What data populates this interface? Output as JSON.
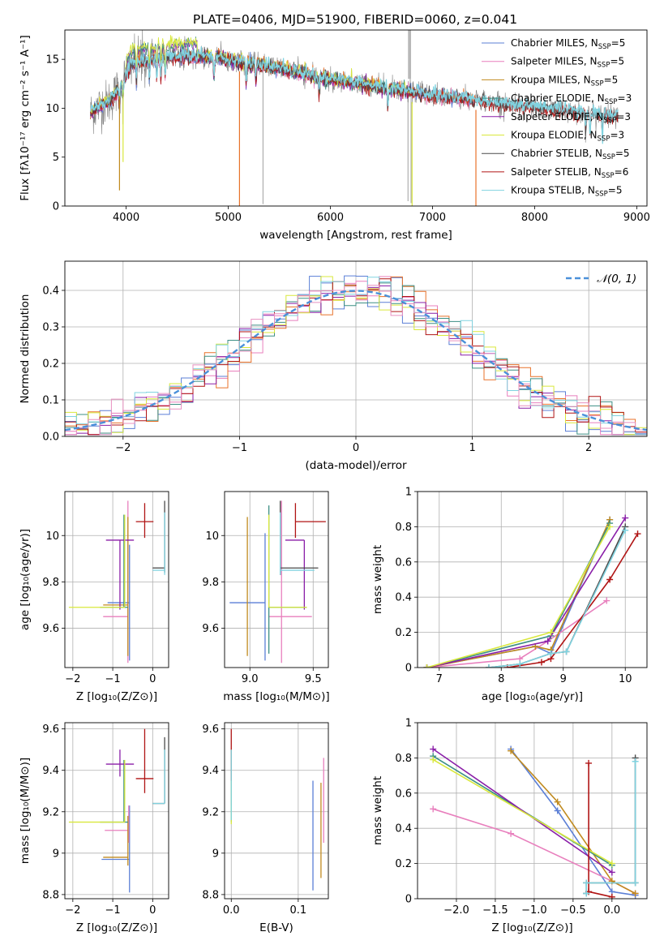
{
  "figure": {
    "title": "PLATE=0406, MJD=51900, FIBERID=0060, z=0.041"
  },
  "colors": {
    "Chabrier MILES": "#5b7fd6",
    "Salpeter MILES": "#e87fbd",
    "Kroupa MILES": "#c08a1e",
    "Chabrier ELODIE": "#3d8f84",
    "Salpeter ELODIE": "#8a1fa8",
    "Kroupa ELODIE": "#d9e83c",
    "Chabrier STELIB": "#4a4a4a",
    "Salpeter STELIB": "#b01414",
    "Kroupa STELIB": "#80d3e0",
    "data": "#808080",
    "gaussian": "#4a90d9",
    "orange": "#e8722a",
    "grid": "#b0b0b0"
  },
  "chart_data": [
    {
      "type": "line",
      "id": "spectrum",
      "xlabel": "wavelength [Angstrom, rest frame]",
      "ylabel": "Flux [fλ10⁻¹⁷ erg cm⁻² s⁻¹ A⁻¹]",
      "xlim": [
        3400,
        9100
      ],
      "ylim": [
        0,
        18
      ],
      "xticks": [
        4000,
        5000,
        6000,
        7000,
        8000,
        9000
      ],
      "yticks": [
        0,
        5,
        10,
        15
      ],
      "grid": false,
      "legend_position": "top-right",
      "legend": [
        {
          "base": "Chabrier MILES, N",
          "sub": "SSP",
          "tail": "=5"
        },
        {
          "base": "Salpeter MILES, N",
          "sub": "SSP",
          "tail": "=5"
        },
        {
          "base": "Kroupa MILES, N",
          "sub": "SSP",
          "tail": "=5"
        },
        {
          "base": "Chabrier ELODIE, N",
          "sub": "SSP",
          "tail": "=3"
        },
        {
          "base": "Salpeter ELODIE, N",
          "sub": "SSP",
          "tail": "=3"
        },
        {
          "base": "Kroupa ELODIE, N",
          "sub": "SSP",
          "tail": "=3"
        },
        {
          "base": "Chabrier STELIB, N",
          "sub": "SSP",
          "tail": "=5"
        },
        {
          "base": "Salpeter STELIB, N",
          "sub": "SSP",
          "tail": "=6"
        },
        {
          "base": "Kroupa STELIB, N",
          "sub": "SSP",
          "tail": "=5"
        }
      ],
      "continuum": {
        "x": [
          3650,
          3750,
          3850,
          3950,
          4050,
          4150,
          4250,
          4400,
          4600,
          4800,
          5000,
          5200,
          5500,
          5800,
          6100,
          6400,
          6700,
          7000,
          7300,
          7600,
          7900,
          8200,
          8500,
          8800
        ],
        "y": [
          9.5,
          10.3,
          10.8,
          12.5,
          14.5,
          14.8,
          15.0,
          15.2,
          15.3,
          15.3,
          15.0,
          14.6,
          14.1,
          13.4,
          12.8,
          12.3,
          11.8,
          11.3,
          11.0,
          10.6,
          10.2,
          9.9,
          9.5,
          9.2
        ]
      },
      "dips": [
        {
          "x": 3935,
          "y": 1.6
        },
        {
          "x": 3970,
          "y": 4.5
        },
        {
          "x": 5110,
          "y": 0.0
        },
        {
          "x": 6800,
          "y": 0.0
        },
        {
          "x": 7425,
          "y": 0.0
        }
      ]
    },
    {
      "type": "histogram",
      "id": "residuals",
      "xlabel": "(data-model)/error",
      "ylabel": "Normed distribution",
      "xlim": [
        -2.5,
        2.5
      ],
      "ylim": [
        0,
        0.48
      ],
      "xticks": [
        -2,
        -1,
        0,
        1,
        2
      ],
      "xtick_labels": [
        "−2",
        "−1",
        "0",
        "1",
        "2"
      ],
      "yticks": [
        0.0,
        0.1,
        0.2,
        0.3,
        0.4
      ],
      "ytick_labels": [
        "0.0",
        "0.1",
        "0.2",
        "0.3",
        "0.4"
      ],
      "grid": true,
      "legend_position": "top-right",
      "legend": [
        {
          "label": "𝒩(0, 1)"
        }
      ],
      "bin_width": 0.1
    },
    {
      "type": "scatter",
      "id": "age-vs-Z",
      "xlabel": "Z [log₁₀(Z/Z⊙)]",
      "ylabel": "age  [log₁₀(age/yr)]",
      "xlim": [
        -2.2,
        0.4
      ],
      "ylim": [
        9.43,
        10.19
      ],
      "xticks": [
        -2,
        -1,
        0
      ],
      "xtick_labels": [
        "−2",
        "−1",
        "0"
      ],
      "yticks": [
        9.6,
        9.8,
        10.0
      ],
      "grid": true,
      "points": [
        {
          "model": "Chabrier MILES",
          "x": -0.58,
          "y": 9.71,
          "xerr": [
            0.55,
            0.0
          ],
          "yerr": [
            0.25,
            0.25
          ]
        },
        {
          "model": "Salpeter MILES",
          "x": -0.62,
          "y": 9.65,
          "xerr": [
            0.62,
            0.0
          ],
          "yerr": [
            0.2,
            0.5
          ]
        },
        {
          "model": "Kroupa MILES",
          "x": -0.62,
          "y": 9.7,
          "xerr": [
            0.62,
            0.0
          ],
          "yerr": [
            0.22,
            0.38
          ]
        },
        {
          "model": "Chabrier ELODIE",
          "x": -0.72,
          "y": 9.69,
          "xerr": [
            0.6,
            0.1
          ],
          "yerr": [
            0.0,
            0.4
          ]
        },
        {
          "model": "Salpeter ELODIE",
          "x": -0.82,
          "y": 9.98,
          "xerr": [
            0.35,
            0.35
          ],
          "yerr": [
            0.3,
            0.0
          ]
        },
        {
          "model": "Kroupa ELODIE",
          "x": -0.7,
          "y": 9.69,
          "xerr": [
            1.4,
            0.0
          ],
          "yerr": [
            0.0,
            0.4
          ]
        },
        {
          "model": "Chabrier STELIB",
          "x": 0.3,
          "y": 9.86,
          "xerr": [
            0.3,
            0.0
          ],
          "yerr": [
            0.02,
            0.29
          ]
        },
        {
          "model": "Salpeter STELIB",
          "x": -0.2,
          "y": 10.06,
          "xerr": [
            0.22,
            0.22
          ],
          "yerr": [
            0.07,
            0.08
          ]
        },
        {
          "model": "Kroupa STELIB",
          "x": 0.3,
          "y": 9.85,
          "xerr": [
            0.3,
            0.0
          ],
          "yerr": [
            0.02,
            0.25
          ]
        }
      ]
    },
    {
      "type": "scatter",
      "id": "age-vs-mass",
      "xlabel": "mass [log₁₀(M/M⊙)]",
      "ylabel": "",
      "xlim": [
        8.8,
        9.62
      ],
      "ylim": [
        9.43,
        10.19
      ],
      "xticks": [
        9.0,
        9.5
      ],
      "xtick_labels": [
        "9.0",
        "9.5"
      ],
      "yticks": [
        9.6,
        9.8,
        10.0
      ],
      "grid": true,
      "points": [
        {
          "model": "Chabrier MILES",
          "x": 9.12,
          "y": 9.71,
          "xerr": [
            0.28,
            0.0
          ],
          "yerr": [
            0.25,
            0.3
          ]
        },
        {
          "model": "Salpeter MILES",
          "x": 9.25,
          "y": 9.65,
          "xerr": [
            0.1,
            0.24
          ],
          "yerr": [
            0.2,
            0.5
          ]
        },
        {
          "model": "Kroupa MILES",
          "x": 8.98,
          "y": 9.7,
          "xerr": [
            0.0,
            0.0
          ],
          "yerr": [
            0.22,
            0.38
          ]
        },
        {
          "model": "Chabrier ELODIE",
          "x": 9.15,
          "y": 9.69,
          "xerr": [
            0.0,
            0.3
          ],
          "yerr": [
            0.2,
            0.44
          ]
        },
        {
          "model": "Salpeter ELODIE",
          "x": 9.43,
          "y": 9.98,
          "xerr": [
            0.15,
            0.0
          ],
          "yerr": [
            0.3,
            0.0
          ]
        },
        {
          "model": "Kroupa ELODIE",
          "x": 9.15,
          "y": 9.69,
          "xerr": [
            0.0,
            0.3
          ],
          "yerr": [
            0.0,
            0.4
          ]
        },
        {
          "model": "Chabrier STELIB",
          "x": 9.24,
          "y": 9.86,
          "xerr": [
            0.0,
            0.3
          ],
          "yerr": [
            0.03,
            0.29
          ]
        },
        {
          "model": "Salpeter STELIB",
          "x": 9.36,
          "y": 10.06,
          "xerr": [
            0.0,
            0.24
          ],
          "yerr": [
            0.07,
            0.08
          ]
        },
        {
          "model": "Kroupa STELIB",
          "x": 9.24,
          "y": 9.85,
          "xerr": [
            0.0,
            0.27
          ],
          "yerr": [
            0.02,
            0.25
          ]
        }
      ]
    },
    {
      "type": "line",
      "id": "weight-vs-age",
      "xlabel": "age  [log₁₀(age/yr)]",
      "ylabel": "mass weight",
      "xlim": [
        6.65,
        10.35
      ],
      "ylim": [
        0,
        1.0
      ],
      "xticks": [
        7,
        8,
        9,
        10
      ],
      "yticks": [
        0.0,
        0.2,
        0.4,
        0.6,
        0.8,
        1.0
      ],
      "grid": true,
      "series": [
        {
          "model": "Chabrier MILES",
          "x": [
            6.8,
            8.55,
            8.8,
            9.75
          ],
          "y": [
            0.0,
            0.12,
            0.08,
            0.84
          ]
        },
        {
          "model": "Salpeter MILES",
          "x": [
            6.8,
            8.3,
            8.75,
            9.7
          ],
          "y": [
            0.0,
            0.05,
            0.15,
            0.38
          ]
        },
        {
          "model": "Kroupa MILES",
          "x": [
            6.8,
            8.55,
            8.8,
            9.75
          ],
          "y": [
            0.0,
            0.12,
            0.1,
            0.84
          ]
        },
        {
          "model": "Chabrier ELODIE",
          "x": [
            6.8,
            8.8,
            9.75
          ],
          "y": [
            0.0,
            0.18,
            0.82
          ]
        },
        {
          "model": "Salpeter ELODIE",
          "x": [
            6.8,
            8.75,
            10.0
          ],
          "y": [
            0.0,
            0.15,
            0.85
          ]
        },
        {
          "model": "Kroupa ELODIE",
          "x": [
            6.8,
            8.8,
            9.75
          ],
          "y": [
            0.0,
            0.2,
            0.8
          ]
        },
        {
          "model": "Chabrier STELIB",
          "x": [
            7.8,
            8.3,
            8.8,
            9.05,
            10.0
          ],
          "y": [
            0.0,
            0.02,
            0.08,
            0.09,
            0.8
          ]
        },
        {
          "model": "Salpeter STELIB",
          "x": [
            8.1,
            8.65,
            8.8,
            9.75,
            10.2
          ],
          "y": [
            0.0,
            0.03,
            0.05,
            0.5,
            0.76
          ]
        },
        {
          "model": "Kroupa STELIB",
          "x": [
            7.8,
            8.3,
            8.8,
            9.05,
            10.0
          ],
          "y": [
            0.0,
            0.02,
            0.08,
            0.09,
            0.78
          ]
        }
      ]
    },
    {
      "type": "scatter",
      "id": "mass-vs-Z",
      "xlabel": "Z [log₁₀(Z/Z⊙)]",
      "ylabel": "mass [log₁₀(M/M⊙)]",
      "xlim": [
        -2.2,
        0.4
      ],
      "ylim": [
        8.78,
        9.63
      ],
      "xticks": [
        -2,
        -1,
        0
      ],
      "xtick_labels": [
        "−2",
        "−1",
        "0"
      ],
      "yticks": [
        8.8,
        9.0,
        9.2,
        9.4,
        9.6
      ],
      "grid": true,
      "points": [
        {
          "model": "Chabrier MILES",
          "x": -0.58,
          "y": 8.97,
          "xerr": [
            0.7,
            0.0
          ],
          "yerr": [
            0.16,
            0.26
          ]
        },
        {
          "model": "Salpeter MILES",
          "x": -0.6,
          "y": 9.11,
          "xerr": [
            0.6,
            0.0
          ],
          "yerr": [
            0.06,
            0.12
          ]
        },
        {
          "model": "Kroupa MILES",
          "x": -0.62,
          "y": 8.98,
          "xerr": [
            0.62,
            0.0
          ],
          "yerr": [
            0.04,
            0.2
          ]
        },
        {
          "model": "Chabrier ELODIE",
          "x": -0.72,
          "y": 9.15,
          "xerr": [
            0.6,
            0.1
          ],
          "yerr": [
            0.0,
            0.3
          ]
        },
        {
          "model": "Salpeter ELODIE",
          "x": -0.82,
          "y": 9.43,
          "xerr": [
            0.35,
            0.35
          ],
          "yerr": [
            0.06,
            0.07
          ]
        },
        {
          "model": "Kroupa ELODIE",
          "x": -0.7,
          "y": 9.15,
          "xerr": [
            1.4,
            0.0
          ],
          "yerr": [
            0.0,
            0.3
          ]
        },
        {
          "model": "Chabrier STELIB",
          "x": 0.3,
          "y": 9.24,
          "xerr": [
            0.3,
            0.0
          ],
          "yerr": [
            0.0,
            0.32
          ]
        },
        {
          "model": "Salpeter STELIB",
          "x": -0.2,
          "y": 9.36,
          "xerr": [
            0.22,
            0.22
          ],
          "yerr": [
            0.07,
            0.24
          ]
        },
        {
          "model": "Kroupa STELIB",
          "x": 0.3,
          "y": 9.24,
          "xerr": [
            0.3,
            0.0
          ],
          "yerr": [
            0.0,
            0.26
          ]
        }
      ]
    },
    {
      "type": "scatter",
      "id": "mass-vs-ebv",
      "xlabel": "E(B-V)",
      "ylabel": "",
      "xlim": [
        -0.01,
        0.145
      ],
      "ylim": [
        8.78,
        9.63
      ],
      "xticks": [
        0.0,
        0.1
      ],
      "xtick_labels": [
        "0.0",
        "0.1"
      ],
      "yticks": [
        8.8,
        9.0,
        9.2,
        9.4,
        9.6
      ],
      "grid": true,
      "points": [
        {
          "model": "Chabrier MILES",
          "x": 0.122,
          "y": 9.0,
          "yerr": [
            0.18,
            0.35
          ]
        },
        {
          "model": "Salpeter MILES",
          "x": 0.138,
          "y": 9.2,
          "yerr": [
            0.15,
            0.26
          ]
        },
        {
          "model": "Kroupa MILES",
          "x": 0.134,
          "y": 9.05,
          "yerr": [
            0.17,
            0.29
          ]
        },
        {
          "model": "Chabrier ELODIE",
          "x": 0.0,
          "y": 9.3,
          "yerr": [
            0.15,
            0.2
          ]
        },
        {
          "model": "Salpeter ELODIE",
          "x": 0.0,
          "y": 9.35,
          "yerr": [
            0.12,
            0.15
          ]
        },
        {
          "model": "Kroupa ELODIE",
          "x": 0.0,
          "y": 9.3,
          "yerr": [
            0.16,
            0.2
          ]
        },
        {
          "model": "Salpeter STELIB",
          "x": 0.0,
          "y": 9.45,
          "yerr": [
            0.1,
            0.15
          ]
        },
        {
          "model": "Kroupa STELIB",
          "x": 0.0,
          "y": 9.3,
          "yerr": [
            0.14,
            0.2
          ]
        }
      ]
    },
    {
      "type": "line",
      "id": "weight-vs-Z",
      "xlabel": "Z [log₁₀(Z/Z⊙)]",
      "ylabel": "mass weight",
      "xlim": [
        -2.5,
        0.45
      ],
      "ylim": [
        0,
        1.0
      ],
      "xticks": [
        -2.0,
        -1.5,
        -1.0,
        -0.5,
        0.0
      ],
      "xtick_labels": [
        "−2.0",
        "−1.5",
        "−1.0",
        "−0.5",
        "0.0"
      ],
      "yticks": [
        0.0,
        0.2,
        0.4,
        0.6,
        0.8,
        1.0
      ],
      "grid": true,
      "series": [
        {
          "model": "Chabrier MILES",
          "x": [
            -1.3,
            -0.7,
            0.0,
            0.3
          ],
          "y": [
            0.85,
            0.5,
            0.04,
            0.02
          ]
        },
        {
          "model": "Salpeter MILES",
          "x": [
            -2.3,
            -1.3,
            0.0,
            0.3
          ],
          "y": [
            0.51,
            0.37,
            0.1,
            0.03
          ]
        },
        {
          "model": "Kroupa MILES",
          "x": [
            -1.3,
            -0.7,
            0.0,
            0.3
          ],
          "y": [
            0.84,
            0.55,
            0.1,
            0.03
          ]
        },
        {
          "model": "Chabrier ELODIE",
          "x": [
            -2.3,
            0.0
          ],
          "y": [
            0.81,
            0.19
          ]
        },
        {
          "model": "Salpeter ELODIE",
          "x": [
            -2.3,
            0.0
          ],
          "y": [
            0.85,
            0.15
          ]
        },
        {
          "model": "Kroupa ELODIE",
          "x": [
            -2.3,
            0.0
          ],
          "y": [
            0.79,
            0.2
          ]
        },
        {
          "model": "Chabrier STELIB",
          "x": [
            -0.33,
            -0.33,
            0.3,
            0.3
          ],
          "y": [
            0.03,
            0.09,
            0.09,
            0.8
          ]
        },
        {
          "model": "Salpeter STELIB",
          "x": [
            -0.3,
            -0.3,
            0.0
          ],
          "y": [
            0.77,
            0.04,
            0.01
          ]
        },
        {
          "model": "Kroupa STELIB",
          "x": [
            -0.33,
            -0.33,
            0.3,
            0.3
          ],
          "y": [
            0.03,
            0.09,
            0.09,
            0.78
          ]
        }
      ]
    }
  ]
}
